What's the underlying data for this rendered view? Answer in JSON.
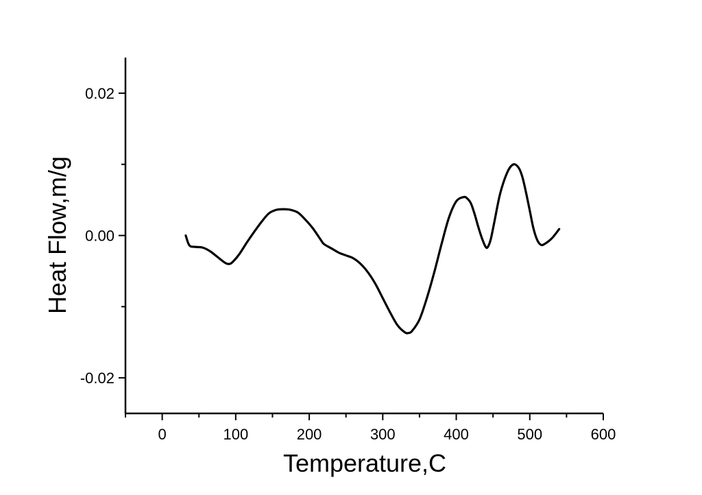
{
  "chart_data": {
    "type": "line",
    "title": "",
    "xlabel": "Temperature,C",
    "ylabel": "Heat Flow,m/g",
    "xlim": [
      -50,
      600
    ],
    "ylim": [
      -0.025,
      0.025
    ],
    "x_ticks": [
      0,
      100,
      200,
      300,
      400,
      500,
      600
    ],
    "x_tick_labels": [
      "0",
      "100",
      "200",
      "300",
      "400",
      "500",
      "600"
    ],
    "y_ticks": [
      -0.02,
      0.0,
      0.02
    ],
    "y_tick_labels": [
      "-0.02",
      "0.00",
      "0.02"
    ],
    "grid": false,
    "line_color": "#000000",
    "series": [
      {
        "x": [
          32,
          37,
          45,
          55,
          65,
          75,
          85,
          90,
          95,
          105,
          115,
          125,
          135,
          145,
          155,
          165,
          175,
          185,
          195,
          205,
          215,
          220,
          230,
          240,
          250,
          260,
          270,
          280,
          290,
          300,
          310,
          320,
          330,
          335,
          340,
          350,
          360,
          370,
          380,
          390,
          400,
          410,
          415,
          420,
          425,
          430,
          435,
          440,
          443,
          447,
          452,
          460,
          470,
          478,
          485,
          490,
          495,
          500,
          505,
          510,
          515,
          520,
          530,
          540
        ],
        "y": [
          0.0,
          -0.0014,
          -0.0016,
          -0.0017,
          -0.0022,
          -0.003,
          -0.0038,
          -0.004,
          -0.0038,
          -0.0026,
          -0.001,
          0.0005,
          0.0019,
          0.0031,
          0.0036,
          0.0037,
          0.0036,
          0.0032,
          0.0022,
          0.001,
          -0.0005,
          -0.0012,
          -0.0018,
          -0.0024,
          -0.0028,
          -0.0032,
          -0.004,
          -0.0052,
          -0.0068,
          -0.0088,
          -0.0108,
          -0.0126,
          -0.0136,
          -0.0137,
          -0.0134,
          -0.0118,
          -0.0088,
          -0.0052,
          -0.0012,
          0.0025,
          0.0048,
          0.0054,
          0.0052,
          0.0045,
          0.003,
          0.0012,
          -0.0004,
          -0.0016,
          -0.0016,
          -0.0005,
          0.002,
          0.006,
          0.009,
          0.01,
          0.0095,
          0.0082,
          0.006,
          0.0035,
          0.001,
          -0.0006,
          -0.0013,
          -0.0012,
          -0.0004,
          0.0009
        ]
      }
    ]
  }
}
